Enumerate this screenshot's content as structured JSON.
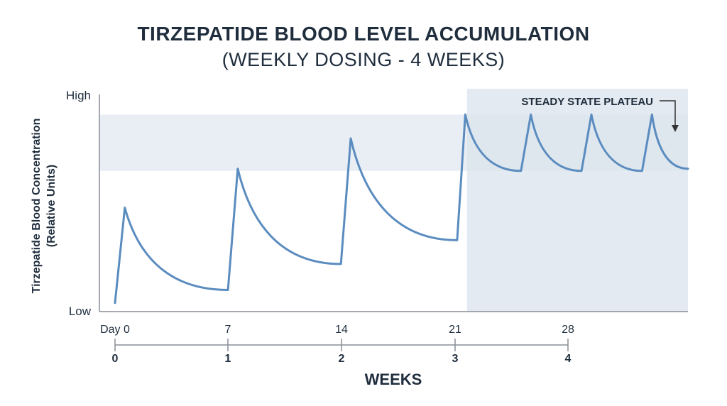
{
  "chart_data": {
    "type": "line",
    "title": "TIRZEPATIDE BLOOD LEVEL ACCUMULATION",
    "subtitle": "(WEEKLY DOSING - 4 WEEKS)",
    "ylabel_line1": "Tirzepatide Blood Concentration",
    "ylabel_line2": "(Relative Units)",
    "xlabel": "WEEKS",
    "y_tick_labels": {
      "high": "High",
      "low": "Low"
    },
    "ylim": [
      0,
      1
    ],
    "xlim_days": [
      0,
      35
    ],
    "day_ticks": [
      {
        "day": 0,
        "label": "Day 0"
      },
      {
        "day": 7,
        "label": "7"
      },
      {
        "day": 14,
        "label": "14"
      },
      {
        "day": 21,
        "label": "21"
      },
      {
        "day": 28,
        "label": "28"
      }
    ],
    "week_ticks": [
      {
        "week": 0,
        "label": "0"
      },
      {
        "week": 1,
        "label": "1"
      },
      {
        "week": 2,
        "label": "2"
      },
      {
        "week": 3,
        "label": "3"
      },
      {
        "week": 4,
        "label": "4"
      }
    ],
    "steady_state_band": {
      "y_low": 0.65,
      "y_high": 0.91
    },
    "steady_state_region_start_day": 21.5,
    "annotation": "STEADY STATE PLATEAU",
    "series": [
      {
        "points": [
          [
            0.0,
            0.04
          ],
          [
            0.6,
            0.48
          ],
          [
            6.9,
            0.1
          ],
          [
            7.5,
            0.66
          ],
          [
            13.8,
            0.22
          ],
          [
            14.4,
            0.8
          ],
          [
            20.9,
            0.33
          ],
          [
            21.4,
            0.91
          ],
          [
            24.8,
            0.65
          ],
          [
            25.4,
            0.91
          ],
          [
            28.5,
            0.65
          ],
          [
            29.1,
            0.91
          ],
          [
            32.2,
            0.65
          ],
          [
            32.8,
            0.91
          ],
          [
            35.0,
            0.66
          ]
        ],
        "decay": [
          false,
          true,
          false,
          true,
          false,
          true,
          false,
          true,
          false,
          true,
          false,
          true,
          false,
          true
        ]
      }
    ],
    "colors": {
      "line": "#5b8cbf",
      "band": "#e9eef4",
      "region": "#dae3ec",
      "axis": "#888e95",
      "text": "#1f2d3d"
    }
  }
}
